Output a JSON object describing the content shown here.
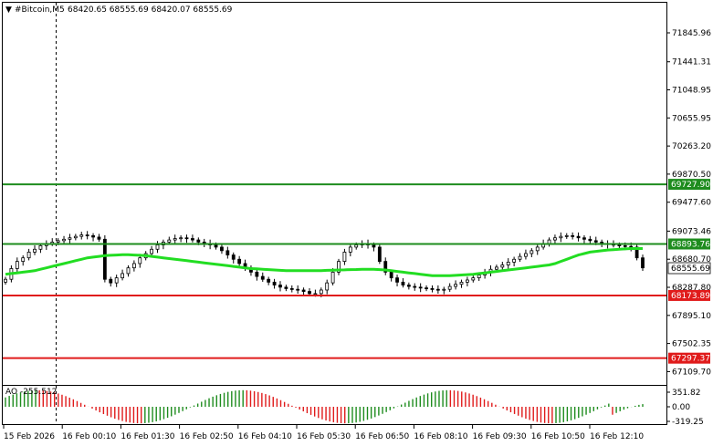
{
  "header": {
    "arrow_glyph": "▼",
    "symbol": "#Bitcoin,M5",
    "ohlc": "68420.65 68555.69 68420.07 68555.69"
  },
  "price_axis": {
    "labels": [
      "71845.96",
      "71441.31",
      "71048.95",
      "70655.95",
      "70263.20",
      "69870.50",
      "69477.60",
      "69073.46",
      "68680.70",
      "68287.80",
      "67895.10",
      "67502.35",
      "67109.70"
    ]
  },
  "levels": [
    {
      "price": 69727.9,
      "label": "69727.90",
      "color": "#1e8c1e"
    },
    {
      "price": 68893.76,
      "label": "68893.76",
      "color": "#1e8c1e"
    },
    {
      "price": 68173.89,
      "label": "68173.89",
      "color": "#e01b1b"
    },
    {
      "price": 67297.37,
      "label": "67297.37",
      "color": "#e01b1b"
    }
  ],
  "current_price": {
    "price": 68555.69,
    "label": "68555.69"
  },
  "oscillator": {
    "label": "AO -255.512",
    "axis_labels": [
      "351.82",
      "0.00",
      "-319.25"
    ],
    "up_color": "#1e8c1e",
    "down_color": "#e01b1b"
  },
  "time_axis": {
    "labels": [
      "15 Feb 2026",
      "16 Feb 00:10",
      "16 Feb 01:30",
      "16 Feb 02:50",
      "16 Feb 04:10",
      "16 Feb 05:30",
      "16 Feb 06:50",
      "16 Feb 08:10",
      "16 Feb 09:30",
      "16 Feb 10:50",
      "16 Feb 12:10"
    ]
  },
  "chart_data": {
    "type": "candlestick",
    "ylim": [
      67000,
      72050
    ],
    "moving_average_color": "#22dd22",
    "series": [
      {
        "name": "price",
        "values": [
          68400,
          68550,
          68650,
          68700,
          68780,
          68820,
          68870,
          68900,
          68920,
          68940,
          68960,
          68980,
          69000,
          69020,
          69010,
          68990,
          68960,
          68400,
          68350,
          68420,
          68480,
          68560,
          68620,
          68700,
          68760,
          68820,
          68880,
          68920,
          68950,
          68970,
          68980,
          68970,
          68950,
          68920,
          68900,
          68880,
          68850,
          68800,
          68740,
          68680,
          68620,
          68560,
          68500,
          68440,
          68400,
          68360,
          68320,
          68290,
          68270,
          68260,
          68250,
          68230,
          68200,
          68200,
          68250,
          68350,
          68500,
          68650,
          68780,
          68850,
          68880,
          68900,
          68880,
          68850,
          68650,
          68500,
          68420,
          68360,
          68320,
          68300,
          68290,
          68280,
          68270,
          68260,
          68250,
          68260,
          68300,
          68330,
          68360,
          68390,
          68420,
          68460,
          68500,
          68540,
          68570,
          68600,
          68640,
          68680,
          68720,
          68760,
          68800,
          68850,
          68900,
          68950,
          68980,
          69000,
          69010,
          69000,
          68980,
          68960,
          68940,
          68920,
          68900,
          68890,
          68880,
          68870,
          68860,
          68850,
          68700,
          68560
        ]
      },
      {
        "name": "moving average",
        "values": [
          68470,
          68480,
          68490,
          68500,
          68510,
          68520,
          68540,
          68560,
          68580,
          68600,
          68620,
          68640,
          68660,
          68680,
          68700,
          68710,
          68720,
          68730,
          68735,
          68740,
          68745,
          68745,
          68740,
          68735,
          68730,
          68720,
          68710,
          68700,
          68690,
          68680,
          68670,
          68660,
          68650,
          68640,
          68630,
          68620,
          68610,
          68600,
          68590,
          68580,
          68570,
          68560,
          68550,
          68545,
          68540,
          68535,
          68530,
          68525,
          68520,
          68520,
          68520,
          68520,
          68520,
          68520,
          68522,
          68525,
          68528,
          68530,
          68532,
          68535,
          68537,
          68540,
          68540,
          68540,
          68535,
          68530,
          68520,
          68510,
          68500,
          68490,
          68480,
          68470,
          68460,
          68450,
          68450,
          68450,
          68450,
          68455,
          68460,
          68465,
          68470,
          68480,
          68490,
          68500,
          68510,
          68520,
          68530,
          68540,
          68550,
          68560,
          68570,
          68580,
          68590,
          68600,
          68620,
          68650,
          68680,
          68710,
          68740,
          68760,
          68780,
          68790,
          68800,
          68810,
          68815,
          68820,
          68825,
          68830,
          68830,
          68830
        ]
      }
    ]
  }
}
